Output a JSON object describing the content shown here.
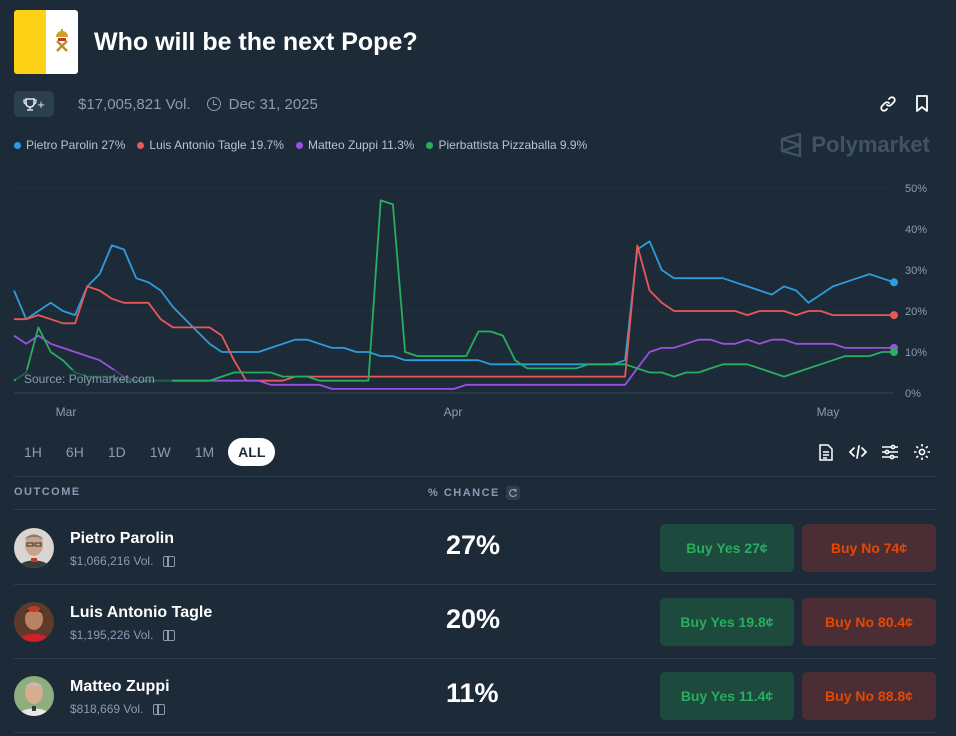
{
  "market": {
    "title": "Who will be the next Pope?",
    "volume": "$17,005,821 Vol.",
    "end_date": "Dec 31, 2025",
    "trophy_label": "+"
  },
  "brand": "Polymarket",
  "legend": [
    {
      "label": "Pietro Parolin 27%",
      "color": "#2d9cdb"
    },
    {
      "label": "Luis Antonio Tagle 19.7%",
      "color": "#eb5757"
    },
    {
      "label": "Matteo Zuppi 11.3%",
      "color": "#9b51e0"
    },
    {
      "label": "Pierbattista Pizzaballa 9.9%",
      "color": "#27ae60"
    }
  ],
  "chart_data": {
    "type": "line",
    "source_label": "Source: Polymarket.com",
    "x_ticks": [
      "Mar",
      "Apr",
      "May"
    ],
    "y_ticks": [
      "50%",
      "40%",
      "30%",
      "20%",
      "10%",
      "0%"
    ],
    "ylim": [
      0,
      50
    ],
    "grid": true,
    "series": [
      {
        "name": "Pietro Parolin",
        "color": "#2d9cdb",
        "values": [
          25,
          18,
          20,
          22,
          20,
          19,
          26,
          29,
          36,
          35,
          28,
          27,
          25,
          21,
          18,
          15,
          12,
          10,
          10,
          10,
          10,
          11,
          12,
          13,
          13,
          12,
          11,
          11,
          10,
          10,
          9,
          9,
          8,
          8,
          8,
          8,
          8,
          8,
          8,
          7,
          7,
          7,
          7,
          7,
          7,
          7,
          7,
          7,
          7,
          7,
          8,
          35,
          37,
          30,
          28,
          28,
          28,
          28,
          28,
          27,
          26,
          25,
          24,
          26,
          25,
          22,
          24,
          26,
          27,
          28,
          29,
          28,
          27
        ]
      },
      {
        "name": "Luis Antonio Tagle",
        "color": "#eb5757",
        "values": [
          18,
          18,
          19,
          18,
          17,
          17,
          26,
          25,
          23,
          22,
          22,
          22,
          18,
          16,
          16,
          16,
          16,
          14,
          8,
          3,
          3,
          3,
          3,
          4,
          4,
          4,
          4,
          4,
          4,
          4,
          4,
          4,
          4,
          4,
          4,
          4,
          4,
          4,
          4,
          4,
          4,
          4,
          4,
          4,
          4,
          4,
          4,
          4,
          4,
          4,
          4,
          36,
          25,
          22,
          20,
          20,
          20,
          20,
          20,
          20,
          19,
          20,
          20,
          20,
          19,
          20,
          20,
          19,
          19,
          19,
          19,
          19,
          19
        ]
      },
      {
        "name": "Matteo Zuppi",
        "color": "#9b51e0",
        "values": [
          14,
          12,
          14,
          12,
          11,
          10,
          9,
          8,
          6,
          4,
          3,
          3,
          3,
          3,
          3,
          3,
          3,
          3,
          3,
          3,
          3,
          2,
          2,
          2,
          2,
          2,
          1,
          1,
          1,
          1,
          1,
          1,
          1,
          1,
          1,
          1,
          1,
          2,
          2,
          2,
          2,
          2,
          2,
          2,
          2,
          2,
          2,
          2,
          2,
          2,
          2,
          6,
          10,
          11,
          11,
          12,
          13,
          13,
          12,
          12,
          13,
          12,
          13,
          13,
          12,
          12,
          12,
          12,
          11,
          11,
          11,
          11,
          11
        ]
      },
      {
        "name": "Pierbattista Pizzaballa",
        "color": "#27ae60",
        "values": [
          3,
          5,
          16,
          10,
          8,
          5,
          4,
          4,
          4,
          3,
          3,
          3,
          3,
          3,
          3,
          3,
          3,
          4,
          5,
          5,
          5,
          5,
          4,
          4,
          4,
          3,
          3,
          3,
          3,
          3,
          47,
          46,
          10,
          9,
          9,
          9,
          9,
          9,
          15,
          15,
          14,
          8,
          6,
          6,
          6,
          6,
          6,
          7,
          7,
          7,
          7,
          6,
          5,
          5,
          4,
          5,
          5,
          6,
          7,
          7,
          7,
          6,
          5,
          4,
          5,
          6,
          7,
          8,
          9,
          9,
          9,
          10,
          10
        ]
      }
    ]
  },
  "time_ranges": [
    "1H",
    "6H",
    "1D",
    "1W",
    "1M",
    "ALL"
  ],
  "active_range": "ALL",
  "table": {
    "col_outcome": "OUTCOME",
    "col_chance": "% CHANCE",
    "rows": [
      {
        "name": "Pietro Parolin",
        "volume": "$1,066,216 Vol.",
        "chance": "27%",
        "yes": "Buy Yes 27¢",
        "no": "Buy No 74¢"
      },
      {
        "name": "Luis Antonio Tagle",
        "volume": "$1,195,226 Vol.",
        "chance": "20%",
        "yes": "Buy Yes 19.8¢",
        "no": "Buy No 80.4¢"
      },
      {
        "name": "Matteo Zuppi",
        "volume": "$818,669 Vol.",
        "chance": "11%",
        "yes": "Buy Yes 11.4¢",
        "no": "Buy No 88.8¢"
      }
    ]
  }
}
